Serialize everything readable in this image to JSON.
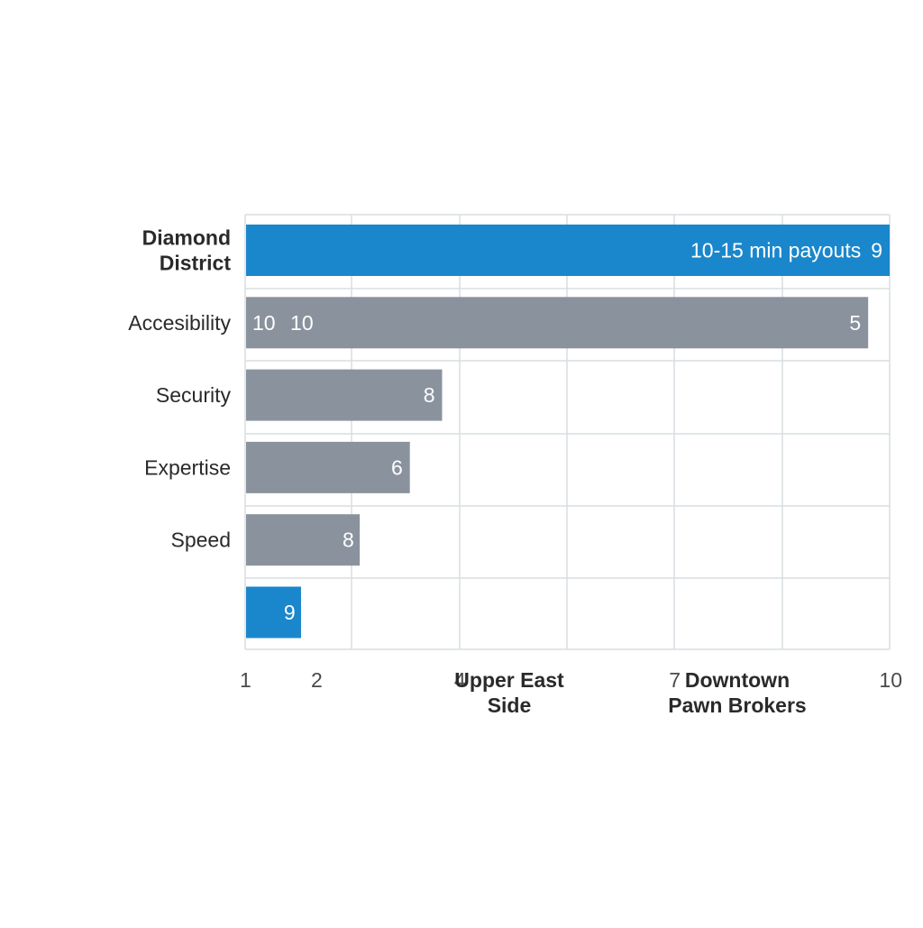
{
  "chart_data": {
    "type": "bar",
    "orientation": "horizontal",
    "title": "",
    "xlabel": "",
    "ylabel": "",
    "xlim": [
      1,
      10
    ],
    "grid": true,
    "legend": "none",
    "colors": {
      "highlight": "#1a87cc",
      "default": "#8a939d",
      "grid": "#d9dde2",
      "tick_text": "#4a4a4a",
      "category_text": "#2a2a2a"
    },
    "x_ticks": [
      {
        "value": 1,
        "label": "1"
      },
      {
        "value": 2,
        "label": "2"
      },
      {
        "value": 4,
        "label": "4"
      },
      {
        "value": 7,
        "label": "7"
      },
      {
        "value": 10,
        "label": "10"
      }
    ],
    "x_annotations": [
      {
        "after_tick": 4,
        "lines": [
          "Upper East",
          "Side"
        ]
      },
      {
        "after_tick": 7,
        "lines": [
          "Downtown",
          "Pawn Brokers"
        ]
      }
    ],
    "bars": [
      {
        "category_lines": [
          "Diamond",
          "District"
        ],
        "category_bold": true,
        "value": 10,
        "highlight": true,
        "labels": [
          {
            "text": "10-15 min payouts",
            "anchor": "end",
            "at_value": 9.6
          },
          {
            "text": "9",
            "anchor": "end",
            "at_value": 9.9
          }
        ]
      },
      {
        "category_lines": [
          "Accesibility"
        ],
        "category_bold": false,
        "value": 9.7,
        "highlight": false,
        "labels": [
          {
            "text": "10",
            "anchor": "start",
            "at_value": 1.1
          },
          {
            "text": "10",
            "anchor": "start",
            "at_value": 1.63
          },
          {
            "text": "5",
            "anchor": "end",
            "at_value": 9.6
          }
        ]
      },
      {
        "category_lines": [
          "Security"
        ],
        "category_bold": false,
        "value": 3.75,
        "highlight": false,
        "labels": [
          {
            "text": "8",
            "anchor": "end",
            "at_value": 3.65
          }
        ]
      },
      {
        "category_lines": [
          "Expertise"
        ],
        "category_bold": false,
        "value": 3.3,
        "highlight": false,
        "labels": [
          {
            "text": "6",
            "anchor": "end",
            "at_value": 3.2
          }
        ]
      },
      {
        "category_lines": [
          "Speed"
        ],
        "category_bold": false,
        "value": 2.6,
        "highlight": false,
        "labels": [
          {
            "text": "8",
            "anchor": "end",
            "at_value": 2.52
          }
        ]
      },
      {
        "category_lines": [],
        "category_bold": false,
        "value": 1.78,
        "highlight": true,
        "labels": [
          {
            "text": "9",
            "anchor": "end",
            "at_value": 1.7
          }
        ]
      }
    ]
  }
}
